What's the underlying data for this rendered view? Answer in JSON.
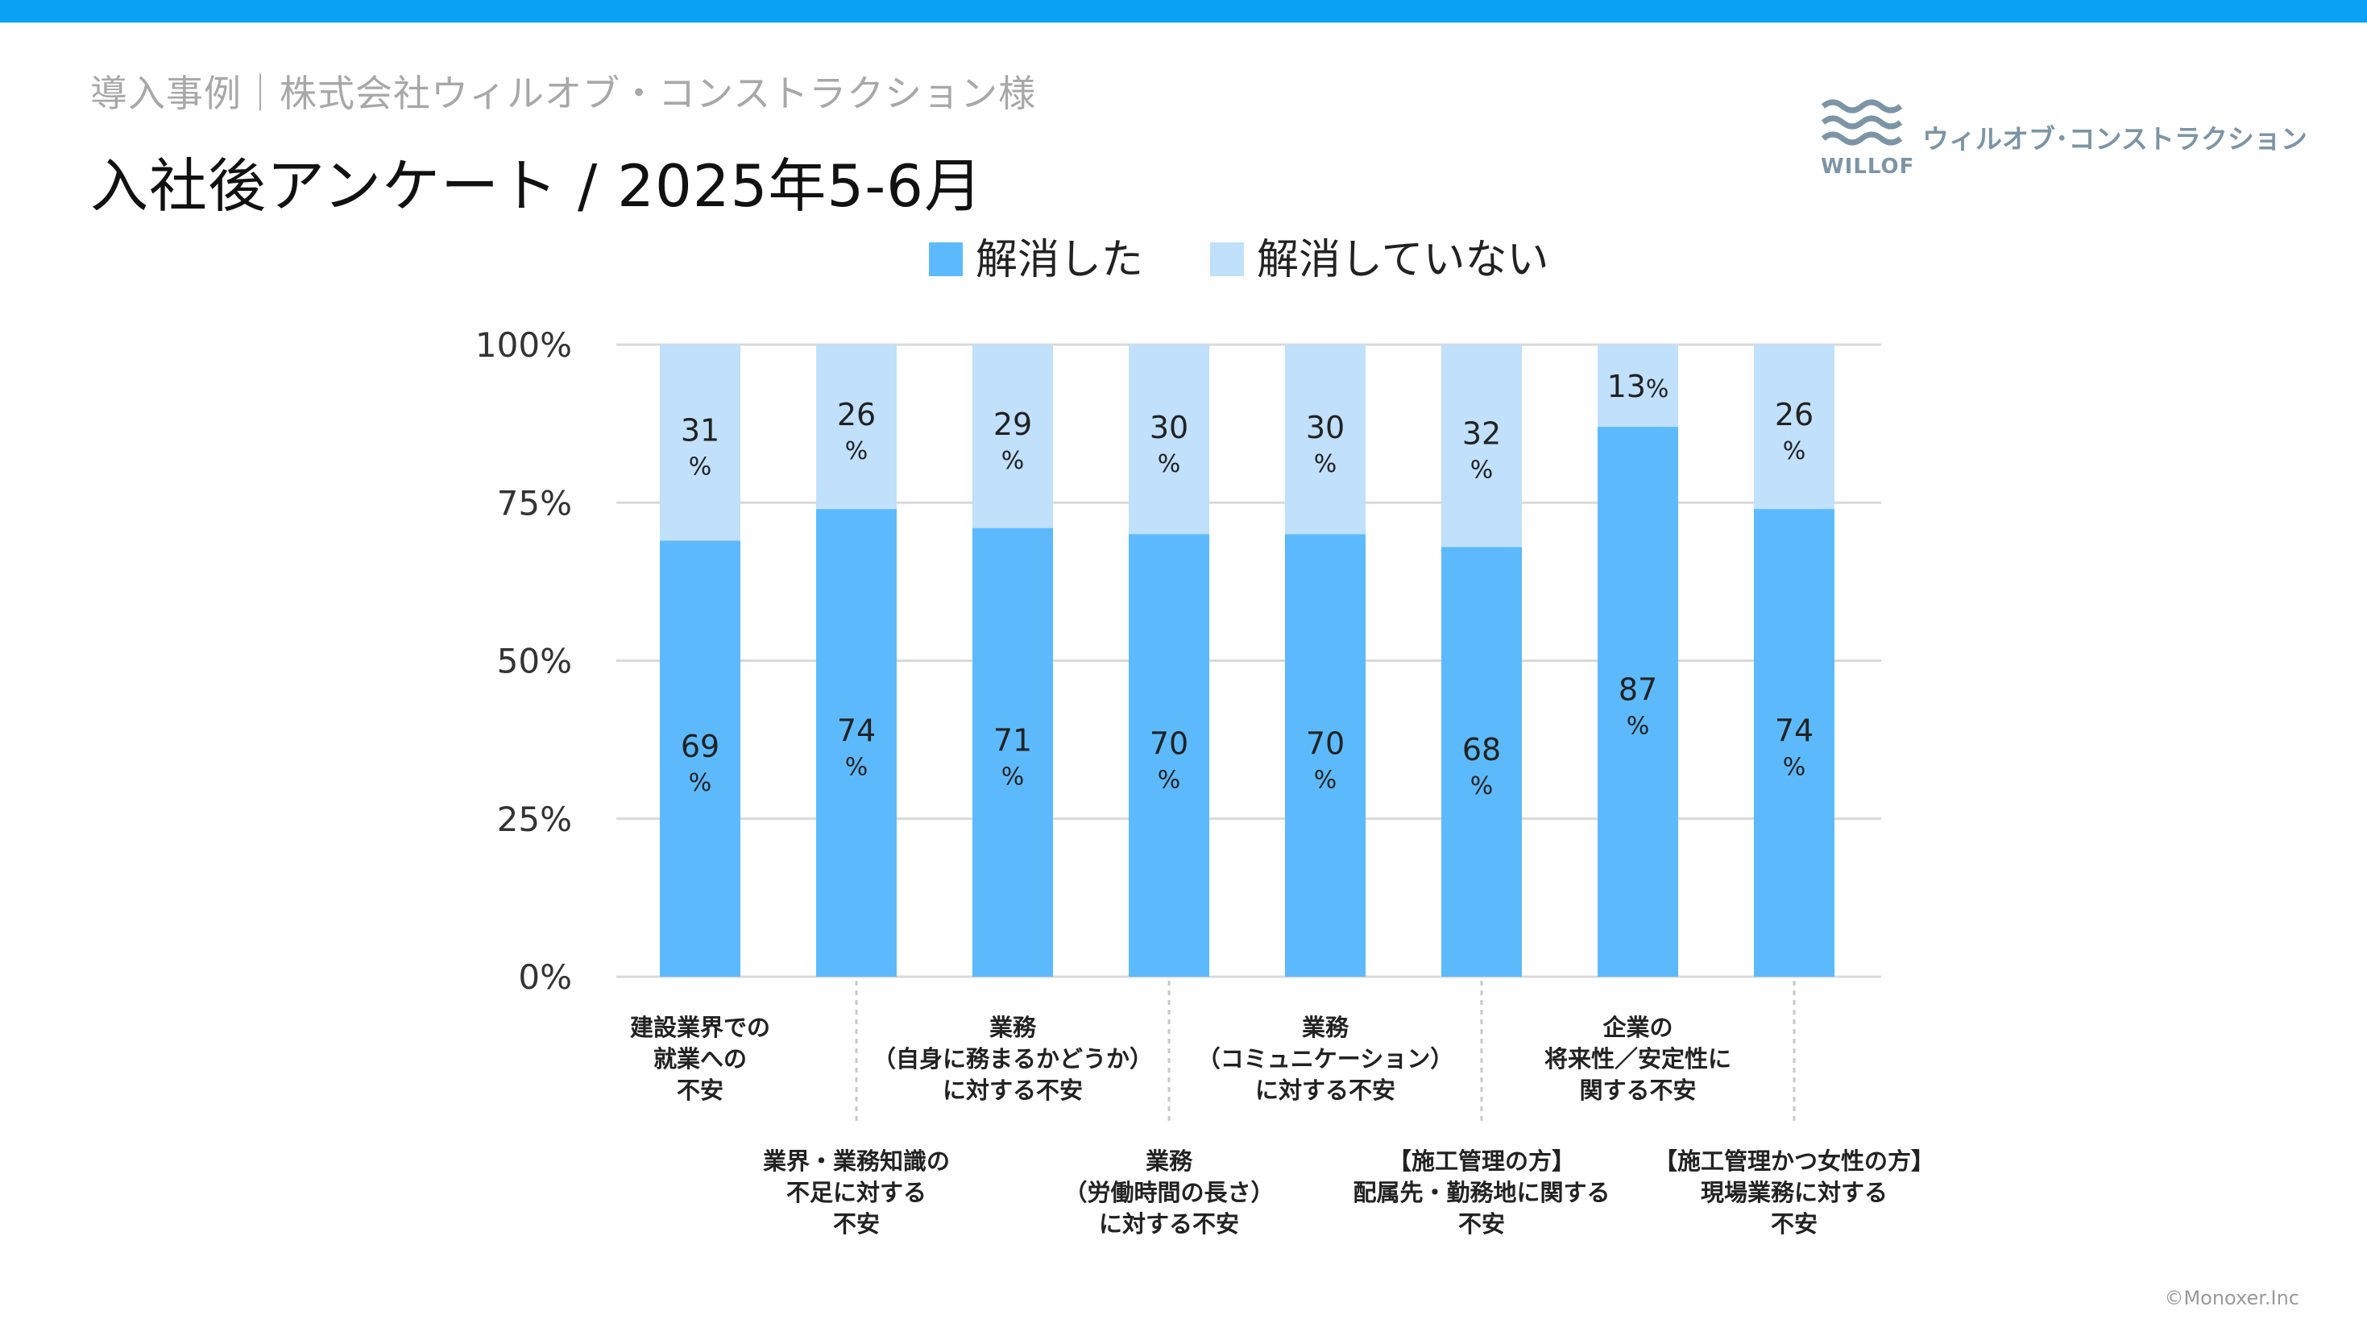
{
  "header": {
    "breadcrumb": "導入事例｜株式会社ウィルオブ・コンストラクション様",
    "title": "入社後アンケート / 2025年5-6月"
  },
  "logo": {
    "text": "ウィルオブ･コンストラクション",
    "word": "WILLOF"
  },
  "footer": {
    "copyright": "©Monoxer.Inc"
  },
  "colors": {
    "top_bar": "#0aa0f6",
    "resolved": "#5cbafc",
    "unresolved": "#c0e0fb"
  },
  "chart_data": {
    "type": "bar",
    "stacked": true,
    "title": "",
    "xlabel": "",
    "ylabel": "",
    "ylim": [
      0,
      100
    ],
    "yticks": [
      "0%",
      "25%",
      "50%",
      "75%",
      "100%"
    ],
    "grid": true,
    "legend_position": "top",
    "categories": [
      [
        "建設業界での",
        "就業への",
        "不安"
      ],
      [
        "業界・業務知識の",
        "不足に対する",
        "不安"
      ],
      [
        "業務",
        "（自身に務まるかどうか）",
        "に対する不安"
      ],
      [
        "業務",
        "（労働時間の長さ）",
        "に対する不安"
      ],
      [
        "業務",
        "（コミュニケーション）",
        "に対する不安"
      ],
      [
        "【施工管理の方】",
        "配属先・勤務地に関する",
        "不安"
      ],
      [
        "企業の",
        "将来性／安定性に",
        "関する不安"
      ],
      [
        "【施工管理かつ女性の方】",
        "現場業務に対する",
        "不安"
      ]
    ],
    "series": [
      {
        "name": "解消した",
        "values": [
          69,
          74,
          71,
          70,
          70,
          68,
          87,
          74
        ]
      },
      {
        "name": "解消していない",
        "values": [
          31,
          26,
          29,
          30,
          30,
          32,
          13,
          26
        ]
      }
    ],
    "value_unit": "%"
  }
}
